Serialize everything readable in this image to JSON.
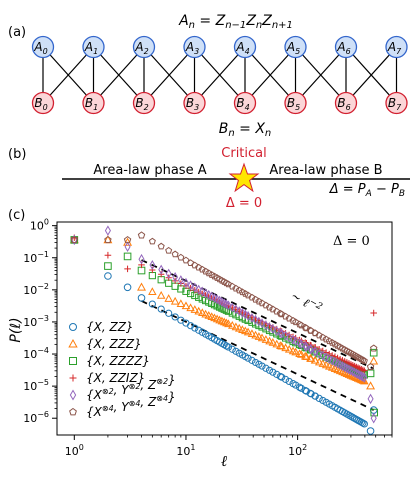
{
  "panel_labels": [
    "(a)",
    "(b)",
    "(c)"
  ],
  "panel_a": {
    "top_equation": "A_n = Z_{n-1} Z_n Z_{n+1}",
    "bottom_equation": "B_n = X_n",
    "a_nodes": [
      "A0",
      "A1",
      "A2",
      "A3",
      "A4",
      "A5",
      "A6",
      "A7"
    ],
    "b_nodes": [
      "B0",
      "B1",
      "B2",
      "B3",
      "B4",
      "B5",
      "B6",
      "B7"
    ],
    "a_color": "#3366cc",
    "a_fill": "#cfe0f7",
    "b_color": "#d22030",
    "b_fill": "#fbd6d8"
  },
  "panel_b": {
    "phase_a": "Area-law phase A",
    "phase_b": "Area-law phase B",
    "critical_label": "Critical",
    "delta_zero": "Δ = 0",
    "delta_def": "Δ = P_A − P_B",
    "critical_color": "#d22030",
    "star_color": "#ffe600"
  },
  "chart_data": {
    "type": "scatter",
    "title": "",
    "annotation": "Δ = 0",
    "scaling_label": "~ ℓ^-2",
    "xlabel": "ℓ",
    "ylabel": "P(ℓ)",
    "xscale": "log",
    "yscale": "log",
    "xlim": [
      0.7,
      700
    ],
    "ylim": [
      3e-07,
      1.3
    ],
    "x_ticks": [
      "10^0",
      "10^1",
      "10^2"
    ],
    "y_ticks": [
      "10^0",
      "10^-1",
      "10^-2",
      "10^-3",
      "10^-4",
      "10^-5",
      "10^-6"
    ],
    "legend_position": "lower-left",
    "guide_lines": [
      {
        "name": "upper",
        "x": [
          4,
          480
        ],
        "y": [
          0.085,
          3.5e-05
        ]
      },
      {
        "name": "lower",
        "x": [
          4,
          480
        ],
        "y": [
          0.0045,
          1.8e-06
        ]
      }
    ],
    "series": [
      {
        "name": "{X, ZZ}",
        "marker": "circle",
        "color": "#1f77b4",
        "points": [
          [
            1,
            0.36
          ],
          [
            2,
            0.027
          ],
          [
            3,
            0.012
          ],
          [
            4,
            0.0056
          ]
        ],
        "decay": {
          "x0": 4,
          "y0": 0.0056,
          "x1": 400,
          "y1": 6.5e-07
        },
        "tail": [
          [
            450,
            4e-07
          ],
          [
            480,
            1.8e-06
          ]
        ]
      },
      {
        "name": "{X, ZZZ}",
        "marker": "triangle",
        "color": "#ff7f0e",
        "points": [
          [
            1,
            0.36
          ],
          [
            2,
            0.36
          ],
          [
            3,
            0.3
          ],
          [
            4,
            0.012
          ]
        ],
        "decay": {
          "x0": 4,
          "y0": 0.012,
          "x1": 400,
          "y1": 1.4e-05
        },
        "tail": [
          [
            450,
            1e-05
          ],
          [
            480,
            6e-05
          ]
        ]
      },
      {
        "name": "{X, ZZZZ}",
        "marker": "square",
        "color": "#2ca02c",
        "points": [
          [
            1,
            0.36
          ],
          [
            2,
            0.055
          ],
          [
            3,
            0.11
          ],
          [
            4,
            0.04
          ]
        ],
        "decay": {
          "x0": 4,
          "y0": 0.04,
          "x1": 400,
          "y1": 2.2e-05
        },
        "tail": [
          [
            450,
            2.5e-05
          ],
          [
            480,
            0.00011
          ],
          [
            485,
            1.5e-06
          ]
        ]
      },
      {
        "name": "{X, ZZIZ}",
        "marker": "plus",
        "color": "#d62728",
        "points": [
          [
            1,
            0.42
          ],
          [
            2,
            0.12
          ],
          [
            3,
            0.045
          ],
          [
            4,
            0.06
          ]
        ],
        "decay": {
          "x0": 4,
          "y0": 0.06,
          "x1": 400,
          "y1": 3e-05
        },
        "tail": [
          [
            480,
            0.0019
          ]
        ]
      },
      {
        "name": "{X^⊗2, Y^⊗2, Z^⊗2}",
        "marker": "diamond",
        "color": "#9467bd",
        "points": [
          [
            1,
            0.36
          ],
          [
            2,
            0.7
          ],
          [
            3,
            0.22
          ],
          [
            4,
            0.09
          ]
        ],
        "decay": {
          "x0": 4,
          "y0": 0.09,
          "x1": 400,
          "y1": 1.8e-05
        },
        "tail": [
          [
            450,
            4e-06
          ],
          [
            480,
            1e-06
          ]
        ]
      },
      {
        "name": "{X^⊗4, Y^⊗4, Z^⊗4}",
        "marker": "pentagon",
        "color": "#8c564b",
        "points": [
          [
            1,
            0.36
          ],
          [
            2,
            0.36
          ],
          [
            3,
            0.36
          ],
          [
            4,
            0.5
          ]
        ],
        "decay": {
          "x0": 4,
          "y0": 0.5,
          "x1": 400,
          "y1": 6e-05
        },
        "tail": [
          [
            450,
            4e-05
          ],
          [
            480,
            0.00015
          ]
        ]
      }
    ]
  }
}
